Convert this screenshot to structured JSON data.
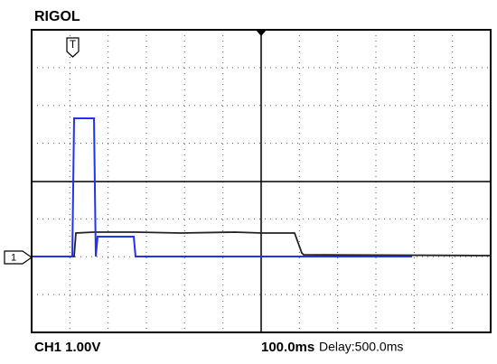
{
  "header": {
    "brand": "RIGOL"
  },
  "markers": {
    "trigger": "T",
    "channel": "1"
  },
  "footer": {
    "channel": "CH1 1.00V",
    "timebase": "100.0ms",
    "delay": "Delay:500.0ms"
  }
}
